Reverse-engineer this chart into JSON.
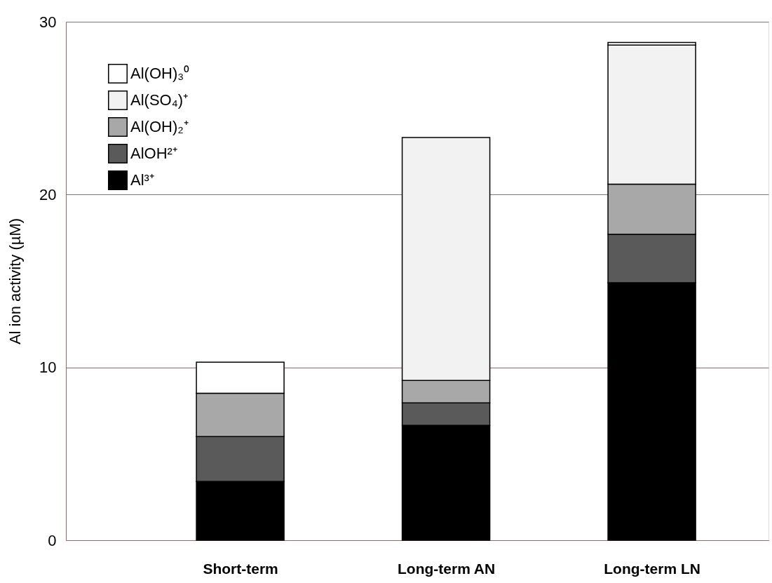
{
  "chart_data": {
    "type": "bar",
    "stacked": true,
    "ylabel": "Al ion activity (µM)",
    "categories": [
      "Short-term",
      "Long-term AN",
      "Long-term LN"
    ],
    "series": [
      {
        "name": "Al³⁺",
        "color": "#000000",
        "values": [
          3.4,
          6.65,
          14.9
        ]
      },
      {
        "name": "AlOH²⁺",
        "color": "#5a5a5a",
        "values": [
          2.6,
          1.3,
          2.8
        ]
      },
      {
        "name": "Al(OH)₂⁺",
        "color": "#a8a8a8",
        "values": [
          2.5,
          1.3,
          2.9
        ]
      },
      {
        "name": "Al(SO₄)⁺",
        "color": "#f2f2f2",
        "values": [
          0,
          14.05,
          8.05
        ]
      },
      {
        "name": "Al(OH)₃⁰",
        "color": "#ffffff",
        "values": [
          1.8,
          0,
          0.15
        ]
      }
    ],
    "ylim": [
      0,
      30
    ],
    "yticks": [
      0,
      10,
      20,
      30
    ],
    "grid": "y",
    "legend": "top left"
  }
}
